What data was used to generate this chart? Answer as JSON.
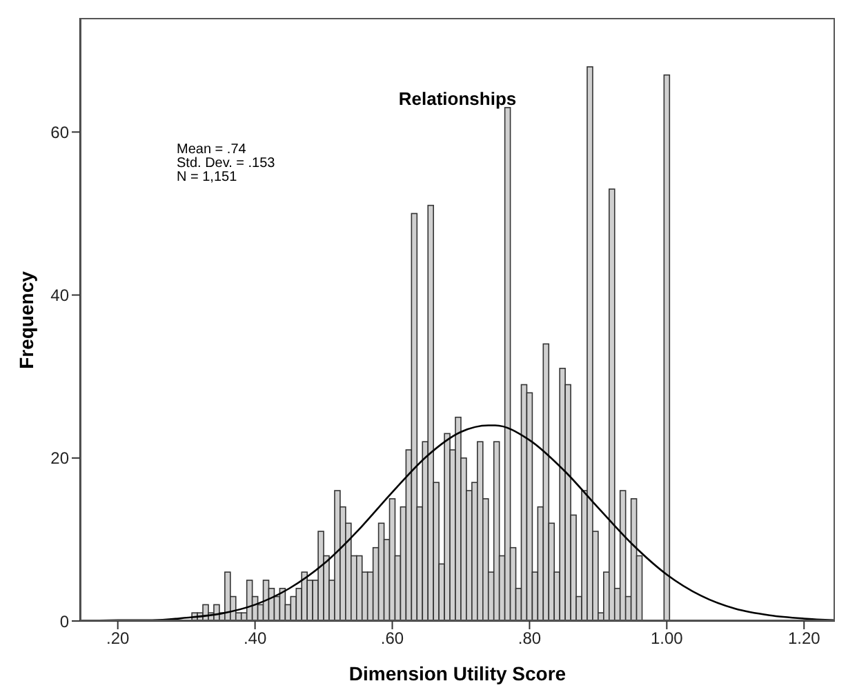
{
  "chart_data": {
    "type": "histogram",
    "title": "Relationships",
    "xlabel": "Dimension Utility Score",
    "ylabel": "Frequency",
    "annotations": [
      "Mean = .74",
      "Std. Dev. = .153",
      "N = 1,151"
    ],
    "bins": [
      0.308,
      0.316,
      0.324,
      0.332,
      0.34,
      0.348,
      0.356,
      0.364,
      0.372,
      0.38,
      0.388,
      0.396,
      0.404,
      0.412,
      0.42,
      0.428,
      0.436,
      0.444,
      0.452,
      0.46,
      0.468,
      0.476,
      0.484,
      0.492,
      0.5,
      0.508,
      0.516,
      0.524,
      0.532,
      0.54,
      0.548,
      0.556,
      0.564,
      0.572,
      0.58,
      0.588,
      0.596,
      0.604,
      0.612,
      0.62,
      0.628,
      0.636,
      0.644,
      0.652,
      0.66,
      0.668,
      0.676,
      0.684,
      0.692,
      0.7,
      0.708,
      0.716,
      0.724,
      0.732,
      0.74,
      0.748,
      0.756,
      0.764,
      0.772,
      0.78,
      0.788,
      0.796,
      0.804,
      0.812,
      0.82,
      0.828,
      0.836,
      0.844,
      0.852,
      0.86,
      0.868,
      0.876,
      0.884,
      0.892,
      0.9,
      0.908,
      0.916,
      0.924,
      0.932,
      0.94,
      0.948,
      0.956,
      0.964,
      0.972,
      0.98,
      0.988,
      0.996,
      1.004
    ],
    "series": [
      {
        "color": "#d0d0d0",
        "values": [
          1,
          1,
          2,
          1,
          2,
          1,
          6,
          3,
          1,
          1,
          5,
          3,
          2,
          5,
          4,
          3,
          4,
          2,
          3,
          4,
          6,
          5,
          5,
          11,
          8,
          5,
          16,
          14,
          12,
          8,
          8,
          6,
          6,
          9,
          12,
          10,
          15,
          8,
          14,
          21,
          50,
          14,
          22,
          51,
          17,
          7,
          23,
          21,
          25,
          20,
          16,
          17,
          22,
          15,
          6,
          22,
          8,
          63,
          9,
          4,
          29,
          28,
          6,
          14,
          34,
          12,
          6,
          31,
          29,
          13,
          3,
          16,
          68,
          11,
          1,
          6,
          53,
          4,
          16,
          3,
          15,
          8,
          0,
          0,
          0,
          0,
          67
        ]
      },
      {
        "type": "line",
        "color": "#000000",
        "x": [
          0.15,
          0.2,
          0.25,
          0.3,
          0.35,
          0.4,
          0.45,
          0.5,
          0.55,
          0.6,
          0.65,
          0.7,
          0.74,
          0.75,
          0.8,
          0.85,
          0.9,
          0.95,
          1.0,
          1.05,
          1.1,
          1.15,
          1.2,
          1.245
        ],
        "values": [
          0.0,
          0.1,
          0.1,
          0.4,
          0.9,
          2.0,
          4.0,
          7.0,
          11.1,
          15.8,
          20.2,
          23.2,
          24.0,
          24.0,
          22.2,
          18.5,
          13.9,
          9.4,
          5.7,
          3.1,
          1.5,
          0.7,
          0.3,
          0.1
        ]
      }
    ],
    "xlim": [
      0.145,
      1.245
    ],
    "xticks": [
      {
        "value": 0.2,
        "label": ".20"
      },
      {
        "value": 0.4,
        "label": ".40"
      },
      {
        "value": 0.6,
        "label": ".60"
      },
      {
        "value": 0.8,
        "label": ".80"
      },
      {
        "value": 1.0,
        "label": "1.00"
      },
      {
        "value": 1.2,
        "label": "1.20"
      }
    ],
    "ylim": [
      0,
      74
    ],
    "yticks": [
      0,
      20,
      40,
      60
    ],
    "grid": false,
    "marker": "none",
    "line_style": "solid"
  }
}
